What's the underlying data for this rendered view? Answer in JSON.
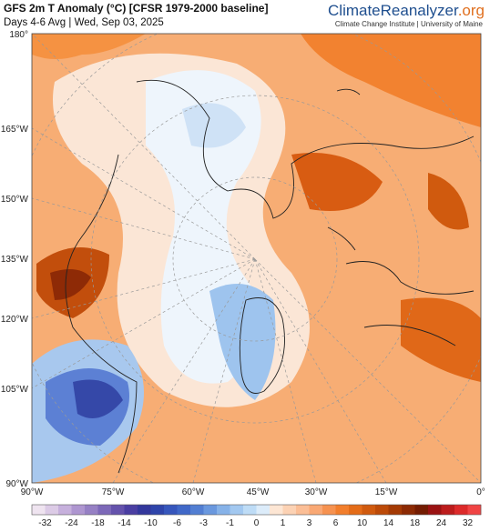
{
  "header": {
    "title": "GFS 2m T Anomaly (°C) [CFSR 1979-2000 baseline]",
    "subtitle": "Days 4-6 Avg | Wed, Sep 03, 2025",
    "brand": [
      "Climate",
      "Reanalyzer",
      ".org"
    ],
    "institute": "Climate Change Institute | University of Maine"
  },
  "map": {
    "left_labels": [
      "180°",
      "165°W",
      "150°W",
      "135°W",
      "120°W",
      "105°W",
      "90°W"
    ],
    "bottom_labels": [
      "90°W",
      "75°W",
      "60°W",
      "45°W",
      "30°W",
      "15°W",
      "0°"
    ]
  },
  "colorbar": {
    "labels": [
      -32,
      -24,
      -18,
      -14,
      -10,
      -6,
      -3,
      -1,
      0,
      1,
      3,
      6,
      10,
      14,
      18,
      24,
      32
    ],
    "colors": [
      "#efe4f0",
      "#dccbe6",
      "#c6b0dc",
      "#ae96d0",
      "#9680c4",
      "#7c68b8",
      "#6452ac",
      "#4a3ea2",
      "#33379c",
      "#2e44aa",
      "#3656bc",
      "#4068c8",
      "#527ed2",
      "#6a98de",
      "#86b2e8",
      "#a2c8f0",
      "#bedcf6",
      "#dcecfa",
      "#fde6d4",
      "#fcd2b4",
      "#fbbe96",
      "#f9a874",
      "#f69250",
      "#f27e2c",
      "#e46c18",
      "#d05a0e",
      "#bc4a08",
      "#a43a04",
      "#8c2a04",
      "#741c02",
      "#9a1212",
      "#bc1c1c",
      "#dc2a2a",
      "#f04444"
    ]
  }
}
